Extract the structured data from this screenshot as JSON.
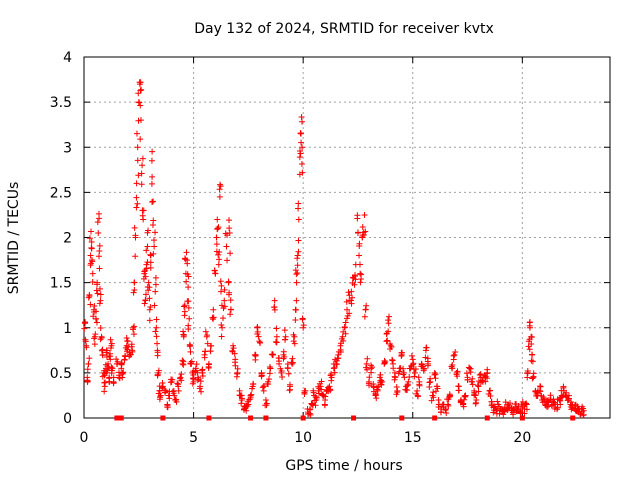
{
  "chart_data": {
    "type": "scatter",
    "title": "Day 132 of 2024, SRMTID for receiver kvtx",
    "xlabel": "GPS time / hours",
    "ylabel": "SRMTID / TECUs",
    "xlim": [
      0,
      24
    ],
    "ylim": [
      0,
      4
    ],
    "xticks": [
      0,
      5,
      10,
      15,
      20
    ],
    "yticks": [
      0,
      0.5,
      1,
      1.5,
      2,
      2.5,
      3,
      3.5,
      4
    ],
    "xtick_labels": [
      "0",
      "5",
      "10",
      "15",
      "20"
    ],
    "ytick_labels": [
      "0",
      "0.5",
      "1",
      "1.5",
      "2",
      "2.5",
      "3",
      "3.5",
      "4"
    ],
    "grid": true,
    "marker": "+",
    "series": [
      {
        "name": "SRMTID",
        "color": "#ff0000",
        "points": [
          [
            0.05,
            1.05
          ],
          [
            0.1,
            0.8
          ],
          [
            0.15,
            0.45
          ],
          [
            0.2,
            0.6
          ],
          [
            0.25,
            1.35
          ],
          [
            0.3,
            1.8
          ],
          [
            0.35,
            1.95
          ],
          [
            0.4,
            1.6
          ],
          [
            0.45,
            1.2
          ],
          [
            0.5,
            0.9
          ],
          [
            0.55,
            1.1
          ],
          [
            0.6,
            1.5
          ],
          [
            0.65,
            2.05
          ],
          [
            0.7,
            1.85
          ],
          [
            0.75,
            1.3
          ],
          [
            0.8,
            0.9
          ],
          [
            0.85,
            0.7
          ],
          [
            0.9,
            0.5
          ],
          [
            0.95,
            0.35
          ],
          [
            1.0,
            0.55
          ],
          [
            1.05,
            0.75
          ],
          [
            1.1,
            0.6
          ],
          [
            1.15,
            0.45
          ],
          [
            1.2,
            0.65
          ],
          [
            1.25,
            0.8
          ],
          [
            1.3,
            0.55
          ],
          [
            1.35,
            0.4
          ],
          [
            1.5,
            0.6
          ],
          [
            1.6,
            0.45
          ],
          [
            1.7,
            0.55
          ],
          [
            1.75,
            0.5
          ],
          [
            1.85,
            0.65
          ],
          [
            1.95,
            0.8
          ],
          [
            2.0,
            0.85
          ],
          [
            2.1,
            0.7
          ],
          [
            2.2,
            0.75
          ],
          [
            2.25,
            1.0
          ],
          [
            2.3,
            1.5
          ],
          [
            2.35,
            2.0
          ],
          [
            2.4,
            2.6
          ],
          [
            2.45,
            3.0
          ],
          [
            2.5,
            3.5
          ],
          [
            2.55,
            3.7
          ],
          [
            2.6,
            3.3
          ],
          [
            2.65,
            2.8
          ],
          [
            2.7,
            2.2
          ],
          [
            2.75,
            1.6
          ],
          [
            2.8,
            1.3
          ],
          [
            2.85,
            1.7
          ],
          [
            2.9,
            1.9
          ],
          [
            2.95,
            1.5
          ],
          [
            3.0,
            1.2
          ],
          [
            3.05,
            1.8
          ],
          [
            3.1,
            2.85
          ],
          [
            3.15,
            2.4
          ],
          [
            3.2,
            1.9
          ],
          [
            3.25,
            1.4
          ],
          [
            3.3,
            1.0
          ],
          [
            3.35,
            0.75
          ],
          [
            3.4,
            0.5
          ],
          [
            3.45,
            0.3
          ],
          [
            3.5,
            0.25
          ],
          [
            3.6,
            0.35
          ],
          [
            3.7,
            0.28
          ],
          [
            3.8,
            0.15
          ],
          [
            3.9,
            0.25
          ],
          [
            4.0,
            0.4
          ],
          [
            4.1,
            0.3
          ],
          [
            4.2,
            0.2
          ],
          [
            4.3,
            0.35
          ],
          [
            4.4,
            0.45
          ],
          [
            4.5,
            0.6
          ],
          [
            4.55,
            0.9
          ],
          [
            4.6,
            1.25
          ],
          [
            4.65,
            1.6
          ],
          [
            4.7,
            1.75
          ],
          [
            4.75,
            1.45
          ],
          [
            4.8,
            1.1
          ],
          [
            4.85,
            0.8
          ],
          [
            4.9,
            0.6
          ],
          [
            4.95,
            0.5
          ],
          [
            5.0,
            0.4
          ],
          [
            5.1,
            0.55
          ],
          [
            5.2,
            0.45
          ],
          [
            5.3,
            0.35
          ],
          [
            5.4,
            0.5
          ],
          [
            5.5,
            0.7
          ],
          [
            5.6,
            0.9
          ],
          [
            5.7,
            0.6
          ],
          [
            5.8,
            0.8
          ],
          [
            5.9,
            1.2
          ],
          [
            6.0,
            1.6
          ],
          [
            6.05,
            2.0
          ],
          [
            6.1,
            2.1
          ],
          [
            6.15,
            1.7
          ],
          [
            6.2,
            2.45
          ],
          [
            6.25,
            1.4
          ],
          [
            6.3,
            1.0
          ],
          [
            6.4,
            1.3
          ],
          [
            6.5,
            1.9
          ],
          [
            6.6,
            1.5
          ],
          [
            6.65,
            2.05
          ],
          [
            6.7,
            1.2
          ],
          [
            6.8,
            0.8
          ],
          [
            6.9,
            0.65
          ],
          [
            7.0,
            0.5
          ],
          [
            7.1,
            0.3
          ],
          [
            7.2,
            0.2
          ],
          [
            7.3,
            0.1
          ],
          [
            7.4,
            0.08
          ],
          [
            7.5,
            0.15
          ],
          [
            7.6,
            0.25
          ],
          [
            7.7,
            0.35
          ],
          [
            7.8,
            0.7
          ],
          [
            7.9,
            1.0
          ],
          [
            8.0,
            0.85
          ],
          [
            8.1,
            0.5
          ],
          [
            8.2,
            0.3
          ],
          [
            8.3,
            0.2
          ],
          [
            8.4,
            0.4
          ],
          [
            8.5,
            0.55
          ],
          [
            8.6,
            0.7
          ],
          [
            8.7,
            1.3
          ],
          [
            8.8,
            0.9
          ],
          [
            8.9,
            0.6
          ],
          [
            9.0,
            0.5
          ],
          [
            9.1,
            0.7
          ],
          [
            9.2,
            0.9
          ],
          [
            9.3,
            0.55
          ],
          [
            9.4,
            0.35
          ],
          [
            9.5,
            0.6
          ],
          [
            9.6,
            0.9
          ],
          [
            9.65,
            1.2
          ],
          [
            9.7,
            1.5
          ],
          [
            9.75,
            1.8
          ],
          [
            9.8,
            2.2
          ],
          [
            9.85,
            2.7
          ],
          [
            9.9,
            3.15
          ],
          [
            9.95,
            3.0
          ],
          [
            10.0,
            1.0
          ],
          [
            10.1,
            0.3
          ],
          [
            10.2,
            0.1
          ],
          [
            10.3,
            0.05
          ],
          [
            10.4,
            0.15
          ],
          [
            10.5,
            0.25
          ],
          [
            10.6,
            0.2
          ],
          [
            10.7,
            0.3
          ],
          [
            10.8,
            0.35
          ],
          [
            10.9,
            0.25
          ],
          [
            11.0,
            0.2
          ],
          [
            11.1,
            0.3
          ],
          [
            11.2,
            0.35
          ],
          [
            11.3,
            0.45
          ],
          [
            11.4,
            0.55
          ],
          [
            11.5,
            0.6
          ],
          [
            11.6,
            0.7
          ],
          [
            11.7,
            0.8
          ],
          [
            11.8,
            0.9
          ],
          [
            11.9,
            1.0
          ],
          [
            12.0,
            1.2
          ],
          [
            12.1,
            1.3
          ],
          [
            12.2,
            1.4
          ],
          [
            12.3,
            1.55
          ],
          [
            12.4,
            1.7
          ],
          [
            12.5,
            2.05
          ],
          [
            12.55,
            1.8
          ],
          [
            12.6,
            1.6
          ],
          [
            12.7,
            2.0
          ],
          [
            12.8,
            2.25
          ],
          [
            12.85,
            1.2
          ],
          [
            12.9,
            0.6
          ],
          [
            13.0,
            0.4
          ],
          [
            13.1,
            0.55
          ],
          [
            13.2,
            0.35
          ],
          [
            13.3,
            0.25
          ],
          [
            13.4,
            0.3
          ],
          [
            13.5,
            0.45
          ],
          [
            13.6,
            0.4
          ],
          [
            13.7,
            0.6
          ],
          [
            13.8,
            0.85
          ],
          [
            13.9,
            1.05
          ],
          [
            14.0,
            0.8
          ],
          [
            14.1,
            0.6
          ],
          [
            14.2,
            0.45
          ],
          [
            14.3,
            0.3
          ],
          [
            14.4,
            0.55
          ],
          [
            14.5,
            0.7
          ],
          [
            14.6,
            0.5
          ],
          [
            14.7,
            0.35
          ],
          [
            14.8,
            0.4
          ],
          [
            14.9,
            0.55
          ],
          [
            15.0,
            0.65
          ],
          [
            15.1,
            0.5
          ],
          [
            15.2,
            0.3
          ],
          [
            15.3,
            0.4
          ],
          [
            15.4,
            0.6
          ],
          [
            15.5,
            0.55
          ],
          [
            15.6,
            0.75
          ],
          [
            15.7,
            0.6
          ],
          [
            15.8,
            0.4
          ],
          [
            15.9,
            0.25
          ],
          [
            16.0,
            0.5
          ],
          [
            16.1,
            0.35
          ],
          [
            16.2,
            0.15
          ],
          [
            16.3,
            0.1
          ],
          [
            16.4,
            0.15
          ],
          [
            16.5,
            0.1
          ],
          [
            16.6,
            0.15
          ],
          [
            16.7,
            0.25
          ],
          [
            16.8,
            0.55
          ],
          [
            16.9,
            0.7
          ],
          [
            17.0,
            0.5
          ],
          [
            17.1,
            0.35
          ],
          [
            17.2,
            0.2
          ],
          [
            17.3,
            0.15
          ],
          [
            17.4,
            0.25
          ],
          [
            17.5,
            0.45
          ],
          [
            17.6,
            0.55
          ],
          [
            17.7,
            0.4
          ],
          [
            17.8,
            0.3
          ],
          [
            17.9,
            0.2
          ],
          [
            18.0,
            0.35
          ],
          [
            18.1,
            0.45
          ],
          [
            18.2,
            0.4
          ],
          [
            18.3,
            0.45
          ],
          [
            18.4,
            0.5
          ],
          [
            18.5,
            0.3
          ],
          [
            18.6,
            0.18
          ],
          [
            18.7,
            0.12
          ],
          [
            18.8,
            0.1
          ],
          [
            18.9,
            0.15
          ],
          [
            19.0,
            0.1
          ],
          [
            19.1,
            0.08
          ],
          [
            19.2,
            0.12
          ],
          [
            19.3,
            0.1
          ],
          [
            19.4,
            0.12
          ],
          [
            19.5,
            0.08
          ],
          [
            19.6,
            0.1
          ],
          [
            19.7,
            0.12
          ],
          [
            19.8,
            0.1
          ],
          [
            19.9,
            0.08
          ],
          [
            20.0,
            0.12
          ],
          [
            20.1,
            0.1
          ],
          [
            20.2,
            0.15
          ],
          [
            20.25,
            0.5
          ],
          [
            20.3,
            0.85
          ],
          [
            20.35,
            1.0
          ],
          [
            20.4,
            0.9
          ],
          [
            20.45,
            0.7
          ],
          [
            20.5,
            0.45
          ],
          [
            20.6,
            0.3
          ],
          [
            20.7,
            0.25
          ],
          [
            20.8,
            0.3
          ],
          [
            20.9,
            0.2
          ],
          [
            21.0,
            0.18
          ],
          [
            21.1,
            0.15
          ],
          [
            21.2,
            0.18
          ],
          [
            21.3,
            0.2
          ],
          [
            21.4,
            0.15
          ],
          [
            21.5,
            0.12
          ],
          [
            21.6,
            0.15
          ],
          [
            21.7,
            0.2
          ],
          [
            21.8,
            0.25
          ],
          [
            21.9,
            0.3
          ],
          [
            22.0,
            0.28
          ],
          [
            22.1,
            0.2
          ],
          [
            22.2,
            0.15
          ],
          [
            22.3,
            0.12
          ],
          [
            22.4,
            0.1
          ],
          [
            22.5,
            0.08
          ],
          [
            22.6,
            0.1
          ],
          [
            22.7,
            0.1
          ],
          [
            22.8,
            0.08
          ]
        ]
      }
    ],
    "zero_points": [
      1.5,
      1.7,
      3.6,
      5.7,
      7.6,
      8.3,
      10.0,
      12.3,
      14.5,
      16.0,
      18.4,
      20.0,
      22.3
    ]
  }
}
